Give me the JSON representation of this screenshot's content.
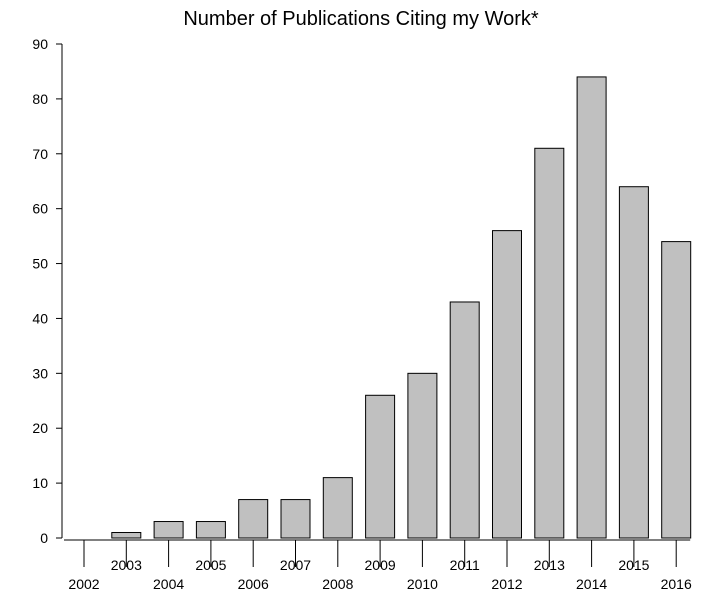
{
  "chart_data": {
    "type": "bar",
    "title": "Number of Publications Citing my Work*",
    "xlabel": "",
    "ylabel": "",
    "categories": [
      "2002",
      "2003",
      "2004",
      "2005",
      "2006",
      "2007",
      "2008",
      "2009",
      "2010",
      "2011",
      "2012",
      "2013",
      "2014",
      "2015",
      "2016"
    ],
    "values": [
      0,
      1,
      3,
      3,
      7,
      7,
      11,
      26,
      30,
      43,
      56,
      71,
      84,
      64,
      54
    ],
    "ylim": [
      0,
      90
    ],
    "yticks": [
      "0",
      "10",
      "20",
      "30",
      "40",
      "50",
      "60",
      "70",
      "80",
      "90"
    ],
    "grid": false,
    "legend": "none",
    "bar_color": "#c0c0c0",
    "edge_color": "#000000"
  }
}
